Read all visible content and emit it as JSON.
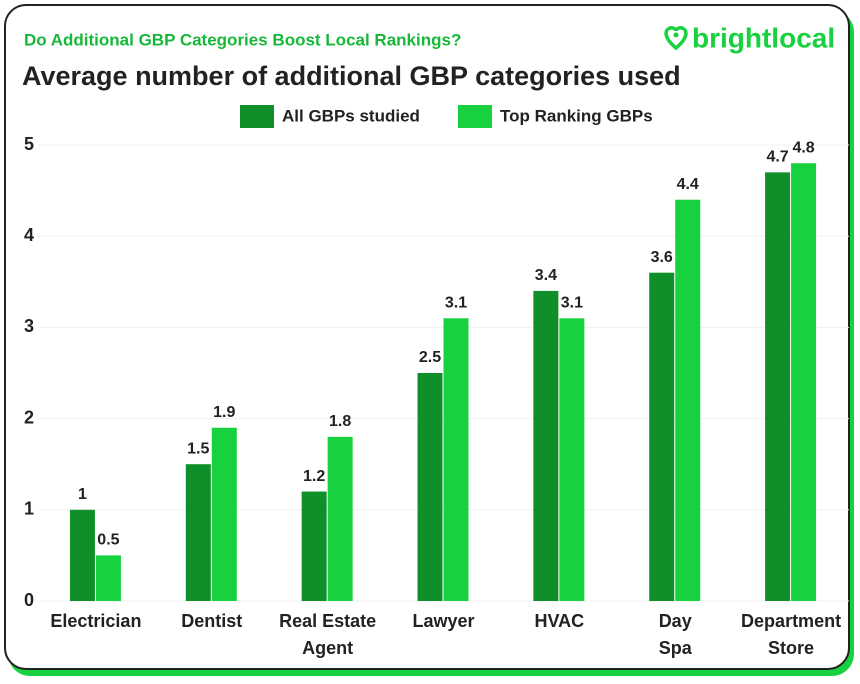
{
  "subtitle": "Do Additional GBP Categories Boost Local Rankings?",
  "logo": "brightlocal",
  "chart_data": {
    "type": "bar",
    "title": "Average number of additional GBP categories used",
    "categories": [
      "Electrician",
      "Dentist",
      "Real Estate\nAgent",
      "Lawyer",
      "HVAC",
      "Day\nSpa",
      "Department\nStore"
    ],
    "series": [
      {
        "name": "All GBPs studied",
        "color": "#0f8f2a",
        "values": [
          1,
          1.5,
          1.2,
          2.5,
          3.4,
          3.6,
          4.7
        ]
      },
      {
        "name": "Top Ranking GBPs",
        "color": "#17d23e",
        "values": [
          0.5,
          1.9,
          1.8,
          3.1,
          3.1,
          4.4,
          4.8
        ]
      }
    ],
    "ylim": [
      0,
      5
    ],
    "yticks": [
      0,
      1,
      2,
      3,
      4,
      5
    ],
    "grid": true,
    "legend": "top"
  }
}
